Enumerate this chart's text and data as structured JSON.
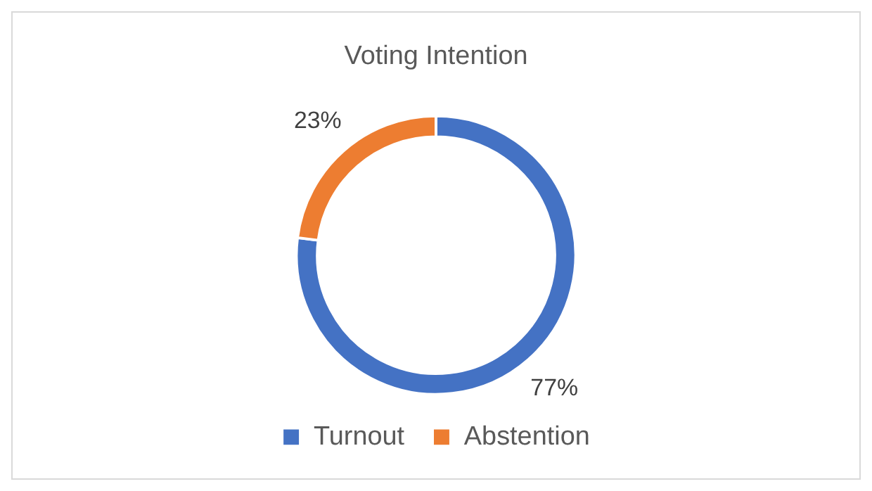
{
  "chart_data": {
    "type": "donut",
    "title": "Voting Intention",
    "categories": [
      "Turnout",
      "Abstention"
    ],
    "values": [
      77,
      23
    ],
    "colors": [
      "#4472c4",
      "#ed7d31"
    ],
    "value_labels": [
      "77%",
      "23%"
    ],
    "legend": "bottom"
  }
}
